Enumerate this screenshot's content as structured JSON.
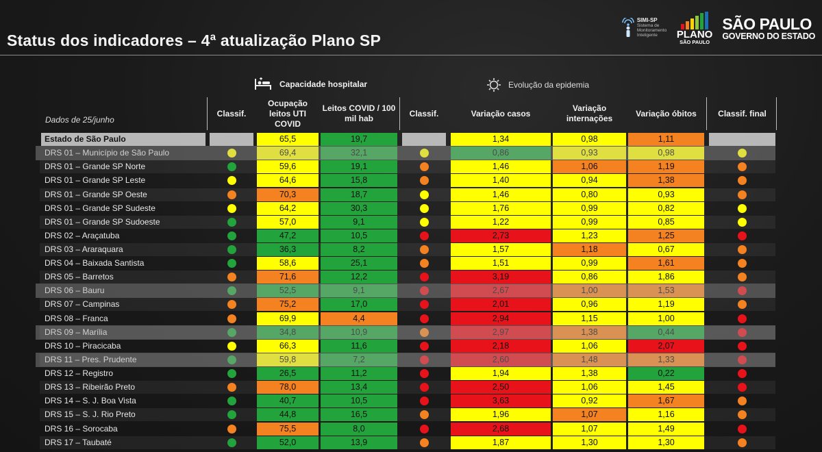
{
  "title": "Status dos indicadores – 4ª atualização Plano SP",
  "logos": {
    "simi_name": "SIMI-SP",
    "simi_sub": "Sistema de Monitoramento Inteligente",
    "plano_t1": "PLANO",
    "plano_t2": "SÃO PAULO",
    "sp_t1": "SÃO PAULO",
    "sp_t2": "GOVERNO DO ESTADO"
  },
  "sections": {
    "capacidade": "Capacidade hospitalar",
    "evolucao": "Evolução da epidemia"
  },
  "date_note": "Dados de 25/junho",
  "headers": [
    "Classif.",
    "Ocupação leitos UTI COVID",
    "Leitos COVID / 100 mil hab",
    "Classif.",
    "Variação casos",
    "Variação internações",
    "Variação óbitos",
    "Classif. final"
  ],
  "colors": {
    "green": "#22a33c",
    "yellow": "#ffff00",
    "orange": "#f58220",
    "red": "#e8121a",
    "dot_green": "#22a33c",
    "dot_yellow": "#ffff00",
    "dot_orange": "#f58220",
    "dot_red": "#e8121a"
  },
  "rows": [
    {
      "name": "Estado de São Paulo",
      "state": true,
      "c1": "",
      "ocup": "65,5",
      "ocup_c": "yellow",
      "leitos": "19,7",
      "leitos_c": "green",
      "c2": "",
      "casos": "1,34",
      "casos_c": "yellow",
      "intern": "0,98",
      "intern_c": "yellow",
      "obitos": "1,11",
      "obitos_c": "orange",
      "cf": ""
    },
    {
      "name": "DRS 01 – Município de São Paulo",
      "dim": true,
      "c1": "yellow",
      "ocup": "69,4",
      "ocup_c": "yellow",
      "leitos": "32,1",
      "leitos_c": "green",
      "c2": "yellow",
      "casos": "0,86",
      "casos_c": "green",
      "intern": "0,93",
      "intern_c": "yellow",
      "obitos": "0,98",
      "obitos_c": "yellow",
      "cf": "yellow"
    },
    {
      "name": "DRS 01 – Grande SP Norte",
      "c1": "green",
      "ocup": "59,6",
      "ocup_c": "yellow",
      "leitos": "19,1",
      "leitos_c": "green",
      "c2": "orange",
      "casos": "1,46",
      "casos_c": "yellow",
      "intern": "1,06",
      "intern_c": "orange",
      "obitos": "1,19",
      "obitos_c": "orange",
      "cf": "orange"
    },
    {
      "name": "DRS 01 – Grande SP Leste",
      "c1": "yellow",
      "ocup": "64,6",
      "ocup_c": "yellow",
      "leitos": "15,8",
      "leitos_c": "green",
      "c2": "orange",
      "casos": "1,40",
      "casos_c": "yellow",
      "intern": "0,94",
      "intern_c": "yellow",
      "obitos": "1,38",
      "obitos_c": "orange",
      "cf": "orange"
    },
    {
      "name": "DRS 01 – Grande SP Oeste",
      "c1": "orange",
      "ocup": "70,3",
      "ocup_c": "orange",
      "leitos": "18,7",
      "leitos_c": "green",
      "c2": "yellow",
      "casos": "1,46",
      "casos_c": "yellow",
      "intern": "0,80",
      "intern_c": "yellow",
      "obitos": "0,93",
      "obitos_c": "yellow",
      "cf": "orange"
    },
    {
      "name": "DRS 01 – Grande SP Sudeste",
      "c1": "yellow",
      "ocup": "64,2",
      "ocup_c": "yellow",
      "leitos": "30,3",
      "leitos_c": "green",
      "c2": "yellow",
      "casos": "1,76",
      "casos_c": "yellow",
      "intern": "0,99",
      "intern_c": "yellow",
      "obitos": "0,82",
      "obitos_c": "yellow",
      "cf": "yellow"
    },
    {
      "name": "DRS 01 – Grande SP Sudoeste",
      "c1": "green",
      "ocup": "57,0",
      "ocup_c": "yellow",
      "leitos": "9,1",
      "leitos_c": "green",
      "c2": "yellow",
      "casos": "1,22",
      "casos_c": "yellow",
      "intern": "0,99",
      "intern_c": "yellow",
      "obitos": "0,85",
      "obitos_c": "yellow",
      "cf": "yellow"
    },
    {
      "name": "DRS 02 – Araçatuba",
      "c1": "green",
      "ocup": "47,2",
      "ocup_c": "green",
      "leitos": "10,5",
      "leitos_c": "green",
      "c2": "red",
      "casos": "2,73",
      "casos_c": "red",
      "intern": "1,23",
      "intern_c": "yellow",
      "obitos": "1,25",
      "obitos_c": "orange",
      "cf": "red"
    },
    {
      "name": "DRS 03 – Araraquara",
      "c1": "green",
      "ocup": "36,3",
      "ocup_c": "green",
      "leitos": "8,2",
      "leitos_c": "green",
      "c2": "orange",
      "casos": "1,57",
      "casos_c": "yellow",
      "intern": "1,18",
      "intern_c": "orange",
      "obitos": "0,67",
      "obitos_c": "yellow",
      "cf": "orange"
    },
    {
      "name": "DRS 04 – Baixada Santista",
      "c1": "green",
      "ocup": "58,6",
      "ocup_c": "yellow",
      "leitos": "25,1",
      "leitos_c": "green",
      "c2": "orange",
      "casos": "1,51",
      "casos_c": "yellow",
      "intern": "0,99",
      "intern_c": "yellow",
      "obitos": "1,61",
      "obitos_c": "orange",
      "cf": "orange"
    },
    {
      "name": "DRS 05 – Barretos",
      "c1": "orange",
      "ocup": "71,6",
      "ocup_c": "orange",
      "leitos": "12,2",
      "leitos_c": "green",
      "c2": "red",
      "casos": "3,19",
      "casos_c": "red",
      "intern": "0,86",
      "intern_c": "yellow",
      "obitos": "1,86",
      "obitos_c": "yellow",
      "cf": "orange"
    },
    {
      "name": "DRS 06 – Bauru",
      "dim": true,
      "c1": "green",
      "ocup": "52,5",
      "ocup_c": "green",
      "leitos": "9,1",
      "leitos_c": "green",
      "c2": "red",
      "casos": "2,67",
      "casos_c": "red",
      "intern": "1,00",
      "intern_c": "orange",
      "obitos": "1,53",
      "obitos_c": "orange",
      "cf": "red"
    },
    {
      "name": "DRS 07 – Campinas",
      "c1": "orange",
      "ocup": "75,2",
      "ocup_c": "orange",
      "leitos": "17,0",
      "leitos_c": "green",
      "c2": "red",
      "casos": "2,01",
      "casos_c": "red",
      "intern": "0,96",
      "intern_c": "yellow",
      "obitos": "1,19",
      "obitos_c": "yellow",
      "cf": "orange"
    },
    {
      "name": "DRS 08 – Franca",
      "c1": "orange",
      "ocup": "69,9",
      "ocup_c": "yellow",
      "leitos": "4,4",
      "leitos_c": "orange",
      "c2": "red",
      "casos": "2,94",
      "casos_c": "red",
      "intern": "1,15",
      "intern_c": "yellow",
      "obitos": "1,00",
      "obitos_c": "yellow",
      "cf": "red"
    },
    {
      "name": "DRS 09 – Marília",
      "dim": true,
      "c1": "green",
      "ocup": "34,8",
      "ocup_c": "green",
      "leitos": "10,9",
      "leitos_c": "green",
      "c2": "orange",
      "casos": "2,97",
      "casos_c": "red",
      "intern": "1,38",
      "intern_c": "orange",
      "obitos": "0,44",
      "obitos_c": "green",
      "cf": "red"
    },
    {
      "name": "DRS 10 – Piracicaba",
      "c1": "yellow",
      "ocup": "66,3",
      "ocup_c": "yellow",
      "leitos": "11,6",
      "leitos_c": "green",
      "c2": "red",
      "casos": "2,18",
      "casos_c": "red",
      "intern": "1,06",
      "intern_c": "yellow",
      "obitos": "2,07",
      "obitos_c": "red",
      "cf": "red"
    },
    {
      "name": "DRS 11 – Pres. Prudente",
      "dim": true,
      "c1": "green",
      "ocup": "59,8",
      "ocup_c": "yellow",
      "leitos": "7,2",
      "leitos_c": "green",
      "c2": "red",
      "casos": "2,60",
      "casos_c": "red",
      "intern": "1,48",
      "intern_c": "orange",
      "obitos": "1,33",
      "obitos_c": "orange",
      "cf": "red"
    },
    {
      "name": "DRS 12 – Registro",
      "c1": "green",
      "ocup": "26,5",
      "ocup_c": "green",
      "leitos": "11,2",
      "leitos_c": "green",
      "c2": "red",
      "casos": "1,94",
      "casos_c": "yellow",
      "intern": "1,38",
      "intern_c": "yellow",
      "obitos": "0,22",
      "obitos_c": "green",
      "cf": "red"
    },
    {
      "name": "DRS 13 – Ribeirão Preto",
      "c1": "orange",
      "ocup": "78,0",
      "ocup_c": "orange",
      "leitos": "13,4",
      "leitos_c": "green",
      "c2": "red",
      "casos": "2,50",
      "casos_c": "red",
      "intern": "1,06",
      "intern_c": "yellow",
      "obitos": "1,45",
      "obitos_c": "yellow",
      "cf": "red"
    },
    {
      "name": "DRS 14 – S. J. Boa Vista",
      "c1": "green",
      "ocup": "40,7",
      "ocup_c": "green",
      "leitos": "10,5",
      "leitos_c": "green",
      "c2": "red",
      "casos": "3,63",
      "casos_c": "red",
      "intern": "0,92",
      "intern_c": "yellow",
      "obitos": "1,67",
      "obitos_c": "orange",
      "cf": "orange"
    },
    {
      "name": "DRS 15 – S. J. Rio Preto",
      "c1": "green",
      "ocup": "44,8",
      "ocup_c": "green",
      "leitos": "16,5",
      "leitos_c": "green",
      "c2": "orange",
      "casos": "1,96",
      "casos_c": "yellow",
      "intern": "1,07",
      "intern_c": "orange",
      "obitos": "1,16",
      "obitos_c": "yellow",
      "cf": "orange"
    },
    {
      "name": "DRS 16 – Sorocaba",
      "c1": "orange",
      "ocup": "75,5",
      "ocup_c": "orange",
      "leitos": "8,0",
      "leitos_c": "green",
      "c2": "red",
      "casos": "2,68",
      "casos_c": "red",
      "intern": "1,07",
      "intern_c": "yellow",
      "obitos": "1,49",
      "obitos_c": "yellow",
      "cf": "red"
    },
    {
      "name": "DRS 17 – Taubaté",
      "c1": "green",
      "ocup": "52,0",
      "ocup_c": "green",
      "leitos": "13,9",
      "leitos_c": "green",
      "c2": "orange",
      "casos": "1,87",
      "casos_c": "yellow",
      "intern": "1,30",
      "intern_c": "yellow",
      "obitos": "1,30",
      "obitos_c": "yellow",
      "cf": "orange"
    }
  ]
}
